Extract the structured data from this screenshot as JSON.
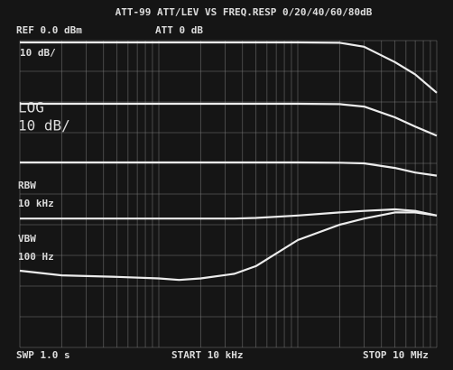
{
  "chart_data": {
    "type": "line",
    "title": "ATT-99 ATT/LEV VS FREQ.RESP 0/20/40/60/80dB",
    "annotations": [
      "REF  0.0 dBm",
      "ATT  0 dB",
      "10 dB/",
      "LOG",
      "10 dB/",
      "RBW",
      "10 kHz",
      "VBW",
      "100 Hz",
      "SWP 1.0 s",
      "START  10 kHz",
      "STOP  10 MHz"
    ],
    "log_x": true,
    "xlim": [
      10000,
      10000000
    ],
    "ylim": [
      -100,
      0
    ],
    "xticks": [
      10000,
      20000,
      30000,
      40000,
      50000,
      60000,
      70000,
      80000,
      90000,
      100000,
      200000,
      300000,
      400000,
      500000,
      600000,
      700000,
      800000,
      900000,
      1000000,
      2000000,
      3000000,
      4000000,
      5000000,
      6000000,
      7000000,
      8000000,
      9000000,
      10000000
    ],
    "yticks": [
      -100,
      -90,
      -80,
      -70,
      -60,
      -50,
      -40,
      -30,
      -20,
      -10,
      0
    ],
    "grid": true,
    "x": [
      10000,
      20000,
      50000,
      100000,
      140000,
      200000,
      350000,
      500000,
      1000000,
      2000000,
      3000000,
      5000000,
      7000000,
      10000000
    ],
    "series": [
      {
        "color": "#ececec",
        "values": [
          -0.6,
          -0.6,
          -0.6,
          -0.6,
          -0.6,
          -0.6,
          -0.6,
          -0.6,
          -0.6,
          -0.7,
          -2,
          -7,
          -11,
          -17
        ]
      },
      {
        "color": "#ececec",
        "values": [
          -20.6,
          -20.6,
          -20.6,
          -20.6,
          -20.6,
          -20.6,
          -20.6,
          -20.6,
          -20.6,
          -20.7,
          -21.5,
          -25,
          -28,
          -31
        ]
      },
      {
        "color": "#ececec",
        "values": [
          -39.7,
          -39.7,
          -39.7,
          -39.7,
          -39.7,
          -39.7,
          -39.7,
          -39.7,
          -39.7,
          -39.8,
          -40,
          -41.5,
          -43,
          -44
        ]
      },
      {
        "color": "#ececec",
        "values": [
          -58,
          -58,
          -58,
          -58,
          -58,
          -58,
          -58,
          -57.8,
          -57,
          -56,
          -55.5,
          -55,
          -55.5,
          -57
        ]
      },
      {
        "color": "#ececec",
        "values": [
          -75,
          -76.5,
          -77,
          -77.5,
          -78,
          -77.5,
          -76,
          -73.5,
          -65,
          -60,
          -58,
          -56,
          -56,
          -57
        ]
      }
    ]
  }
}
